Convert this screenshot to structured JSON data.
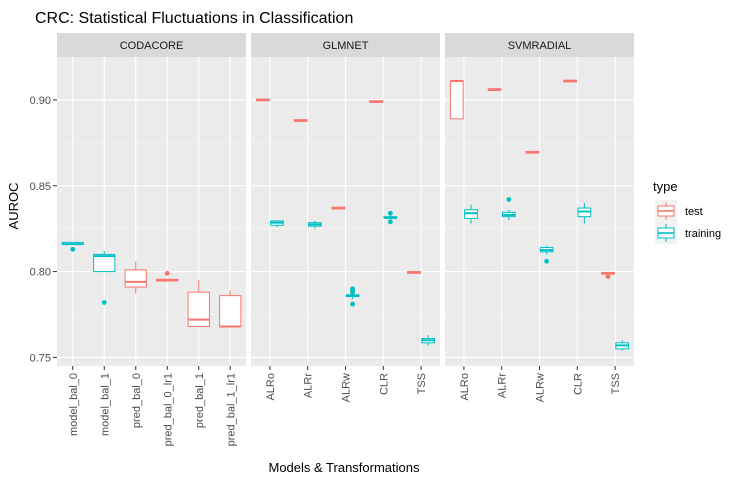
{
  "chart_data": {
    "type": "boxplot",
    "title": "CRC: Statistical Fluctuations in Classification",
    "xlabel": "Models & Transformations",
    "ylabel": "AUROC",
    "ylim": [
      0.745,
      0.925
    ],
    "yticks": [
      0.75,
      0.8,
      0.85,
      0.9
    ],
    "ytick_labels": [
      "0.75",
      "0.80",
      "0.85",
      "0.90"
    ],
    "grid": true,
    "legend": {
      "title": "type",
      "position": "right",
      "entries": [
        {
          "label": "test",
          "color": "#F8766D"
        },
        {
          "label": "training",
          "color": "#00BFC4"
        }
      ]
    },
    "colors": {
      "test": "#F8766D",
      "training": "#00BFC4",
      "panel_bg": "#EBEBEB",
      "strip_bg": "#D9D9D9"
    },
    "facets": [
      {
        "name": "CODACORE",
        "categories": [
          "model_bal_0",
          "model_bal_1",
          "pred_bal_0",
          "pred_bal_0_lr1",
          "pred_bal_1",
          "pred_bal_1_lr1"
        ],
        "boxes": [
          {
            "category": "model_bal_0",
            "type": "training",
            "min": 0.816,
            "q1": 0.816,
            "median": 0.816,
            "q3": 0.817,
            "max": 0.817,
            "outliers": [
              0.813
            ]
          },
          {
            "category": "model_bal_1",
            "type": "training",
            "min": 0.8,
            "q1": 0.8,
            "median": 0.809,
            "q3": 0.81,
            "max": 0.812,
            "outliers": [
              0.782
            ]
          },
          {
            "category": "pred_bal_0",
            "type": "test",
            "min": 0.787,
            "q1": 0.791,
            "median": 0.794,
            "q3": 0.801,
            "max": 0.806,
            "outliers": []
          },
          {
            "category": "pred_bal_0_lr1",
            "type": "test",
            "min": 0.7945,
            "q1": 0.7945,
            "median": 0.795,
            "q3": 0.7955,
            "max": 0.7955,
            "outliers": [
              0.799
            ]
          },
          {
            "category": "pred_bal_1",
            "type": "test",
            "min": 0.768,
            "q1": 0.768,
            "median": 0.772,
            "q3": 0.788,
            "max": 0.795,
            "outliers": []
          },
          {
            "category": "pred_bal_1_lr1",
            "type": "test",
            "min": 0.768,
            "q1": 0.768,
            "median": 0.768,
            "q3": 0.786,
            "max": 0.789,
            "outliers": []
          }
        ]
      },
      {
        "name": "GLMNET",
        "categories": [
          "ALRo",
          "ALRr",
          "ALRw",
          "CLR",
          "TSS"
        ],
        "boxes": [
          {
            "category": "ALRo",
            "type": "test",
            "min": 0.8995,
            "q1": 0.8995,
            "median": 0.9,
            "q3": 0.9005,
            "max": 0.9005,
            "outliers": []
          },
          {
            "category": "ALRo",
            "type": "training",
            "min": 0.826,
            "q1": 0.827,
            "median": 0.8285,
            "q3": 0.8295,
            "max": 0.83,
            "outliers": []
          },
          {
            "category": "ALRr",
            "type": "test",
            "min": 0.8875,
            "q1": 0.8875,
            "median": 0.888,
            "q3": 0.8885,
            "max": 0.8885,
            "outliers": []
          },
          {
            "category": "ALRr",
            "type": "training",
            "min": 0.825,
            "q1": 0.8265,
            "median": 0.8275,
            "q3": 0.8285,
            "max": 0.8295,
            "outliers": []
          },
          {
            "category": "ALRw",
            "type": "test",
            "min": 0.836,
            "q1": 0.8365,
            "median": 0.837,
            "q3": 0.8375,
            "max": 0.838,
            "outliers": []
          },
          {
            "category": "ALRw",
            "type": "training",
            "min": 0.784,
            "q1": 0.7855,
            "median": 0.786,
            "q3": 0.7865,
            "max": 0.787,
            "outliers": [
              0.781,
              0.788,
              0.789,
              0.79
            ]
          },
          {
            "category": "CLR",
            "type": "test",
            "min": 0.8985,
            "q1": 0.8985,
            "median": 0.899,
            "q3": 0.8995,
            "max": 0.8995,
            "outliers": []
          },
          {
            "category": "CLR",
            "type": "training",
            "min": 0.83,
            "q1": 0.831,
            "median": 0.8315,
            "q3": 0.832,
            "max": 0.833,
            "outliers": [
              0.829,
              0.834
            ]
          },
          {
            "category": "TSS",
            "type": "test",
            "min": 0.7985,
            "q1": 0.799,
            "median": 0.7995,
            "q3": 0.8,
            "max": 0.8005,
            "outliers": []
          },
          {
            "category": "TSS",
            "type": "training",
            "min": 0.757,
            "q1": 0.7585,
            "median": 0.76,
            "q3": 0.761,
            "max": 0.763,
            "outliers": []
          }
        ]
      },
      {
        "name": "SVMRADIAL",
        "categories": [
          "ALRo",
          "ALRr",
          "ALRw",
          "CLR",
          "TSS"
        ],
        "boxes": [
          {
            "category": "ALRo",
            "type": "test",
            "min": 0.889,
            "q1": 0.889,
            "median": 0.911,
            "q3": 0.911,
            "max": 0.911,
            "outliers": []
          },
          {
            "category": "ALRo",
            "type": "training",
            "min": 0.828,
            "q1": 0.831,
            "median": 0.834,
            "q3": 0.836,
            "max": 0.839,
            "outliers": []
          },
          {
            "category": "ALRr",
            "type": "test",
            "min": 0.9055,
            "q1": 0.9055,
            "median": 0.906,
            "q3": 0.9065,
            "max": 0.9065,
            "outliers": []
          },
          {
            "category": "ALRr",
            "type": "training",
            "min": 0.83,
            "q1": 0.832,
            "median": 0.833,
            "q3": 0.8345,
            "max": 0.836,
            "outliers": [
              0.842
            ]
          },
          {
            "category": "ALRw",
            "type": "test",
            "min": 0.869,
            "q1": 0.869,
            "median": 0.8695,
            "q3": 0.87,
            "max": 0.87,
            "outliers": []
          },
          {
            "category": "ALRw",
            "type": "training",
            "min": 0.81,
            "q1": 0.8115,
            "median": 0.8125,
            "q3": 0.814,
            "max": 0.815,
            "outliers": [
              0.806
            ]
          },
          {
            "category": "CLR",
            "type": "test",
            "min": 0.9105,
            "q1": 0.9105,
            "median": 0.911,
            "q3": 0.9115,
            "max": 0.9115,
            "outliers": []
          },
          {
            "category": "CLR",
            "type": "training",
            "min": 0.828,
            "q1": 0.832,
            "median": 0.835,
            "q3": 0.837,
            "max": 0.84,
            "outliers": []
          },
          {
            "category": "TSS",
            "type": "test",
            "min": 0.798,
            "q1": 0.7985,
            "median": 0.799,
            "q3": 0.7995,
            "max": 0.8,
            "outliers": [
              0.797
            ]
          },
          {
            "category": "TSS",
            "type": "training",
            "min": 0.754,
            "q1": 0.755,
            "median": 0.757,
            "q3": 0.7585,
            "max": 0.76,
            "outliers": []
          }
        ]
      }
    ]
  }
}
